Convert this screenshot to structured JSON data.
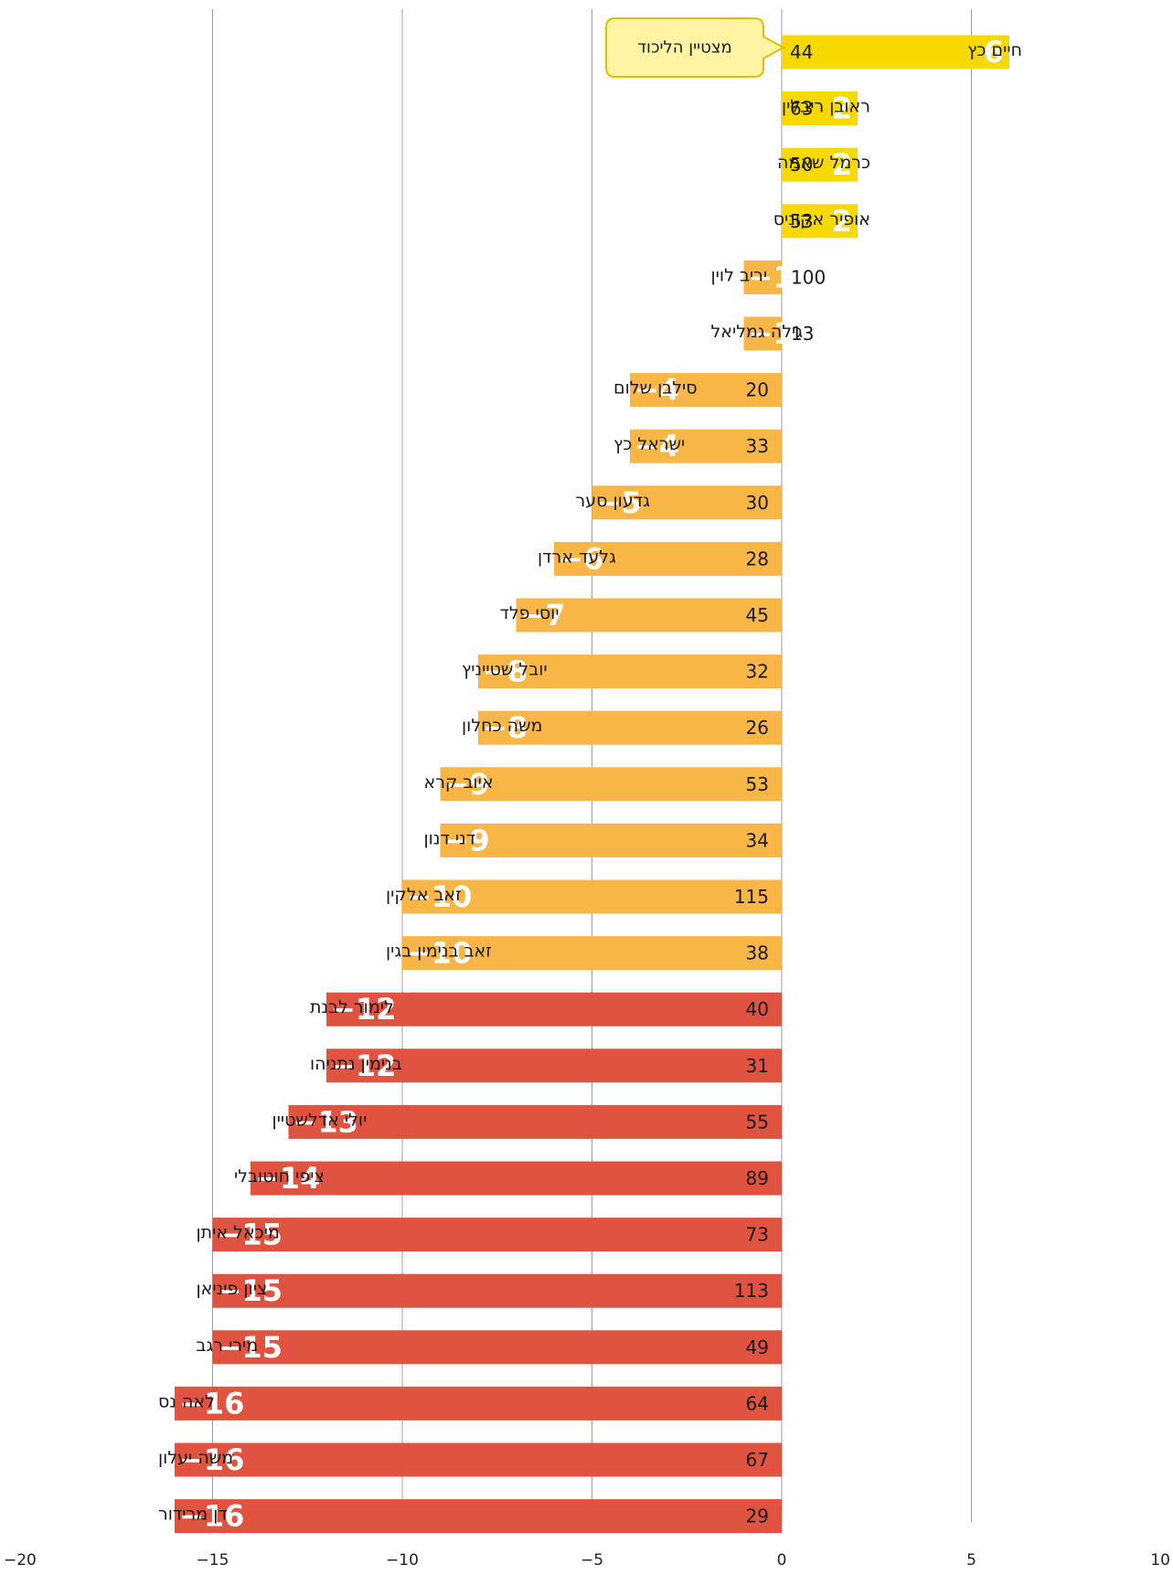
{
  "chart_data": {
    "type": "bar",
    "orientation": "horizontal",
    "xlim": [
      -20,
      10
    ],
    "x_ticks": [
      {
        "value": -20,
        "label": "−20"
      },
      {
        "value": -15,
        "label": "−15"
      },
      {
        "value": -10,
        "label": "−10"
      },
      {
        "value": -5,
        "label": "−5"
      },
      {
        "value": 0,
        "label": "0"
      },
      {
        "value": 5,
        "label": "5"
      },
      {
        "value": 10,
        "label": "10"
      }
    ],
    "grid": "vertical",
    "colors": {
      "positive": "#f7d900",
      "moderate": "#f8b646",
      "severe": "#df5340",
      "grid": "#9e9e9e",
      "callout_fill": "#fff4a3",
      "callout_border": "#e2c000"
    },
    "annotation": {
      "text": "מצטיין הליכוד",
      "target": "חיים כץ"
    },
    "rows": [
      {
        "name": "חיים כץ",
        "change": 6,
        "change_label": "6",
        "value": 44,
        "group": "positive"
      },
      {
        "name": "ראובן ריבלין",
        "change": 2,
        "change_label": "2",
        "value": 63,
        "group": "positive"
      },
      {
        "name": "כרמל שאמה",
        "change": 2,
        "change_label": "2",
        "value": 50,
        "group": "positive"
      },
      {
        "name": "אופיר אקוניס",
        "change": 2,
        "change_label": "2",
        "value": 53,
        "group": "positive"
      },
      {
        "name": "יריב לוין",
        "change": -1,
        "change_label": "−1",
        "value": 100,
        "group": "moderate"
      },
      {
        "name": "גילה גמליאל",
        "change": -1,
        "change_label": "−1",
        "value": 13,
        "group": "moderate"
      },
      {
        "name": "סילבן שלום",
        "change": -4,
        "change_label": "−4",
        "value": 20,
        "group": "moderate"
      },
      {
        "name": "ישראל כץ",
        "change": -4,
        "change_label": "−4",
        "value": 33,
        "group": "moderate"
      },
      {
        "name": "גדעון סער",
        "change": -5,
        "change_label": "−5",
        "value": 30,
        "group": "moderate"
      },
      {
        "name": "גלעד ארדן",
        "change": -6,
        "change_label": "−6",
        "value": 28,
        "group": "moderate"
      },
      {
        "name": "יוסי פלד",
        "change": -7,
        "change_label": "−7",
        "value": 45,
        "group": "moderate"
      },
      {
        "name": "יובל שטייניץ",
        "change": -8,
        "change_label": "−8",
        "value": 32,
        "group": "moderate"
      },
      {
        "name": "משה כחלון",
        "change": -8,
        "change_label": "−8",
        "value": 26,
        "group": "moderate"
      },
      {
        "name": "איוב קרא",
        "change": -9,
        "change_label": "−9",
        "value": 53,
        "group": "moderate"
      },
      {
        "name": "דני דנון",
        "change": -9,
        "change_label": "−9",
        "value": 34,
        "group": "moderate"
      },
      {
        "name": "זאב אלקין",
        "change": -10,
        "change_label": "−10",
        "value": 115,
        "group": "moderate"
      },
      {
        "name": "זאב בנימין בגין",
        "change": -10,
        "change_label": "−10",
        "value": 38,
        "group": "moderate"
      },
      {
        "name": "לימור לבנת",
        "change": -12,
        "change_label": "−12",
        "value": 40,
        "group": "severe"
      },
      {
        "name": "בנימין נתניהו",
        "change": -12,
        "change_label": "−12",
        "value": 31,
        "group": "severe"
      },
      {
        "name": "יולי אדלשטיין",
        "change": -13,
        "change_label": "−13",
        "value": 55,
        "group": "severe"
      },
      {
        "name": "ציפי חוטובלי",
        "change": -14,
        "change_label": "−14",
        "value": 89,
        "group": "severe"
      },
      {
        "name": "מיכאל איתן",
        "change": -15,
        "change_label": "−15",
        "value": 73,
        "group": "severe"
      },
      {
        "name": "ציון פיניאן",
        "change": -15,
        "change_label": "−15",
        "value": 113,
        "group": "severe"
      },
      {
        "name": "מירי רגב",
        "change": -15,
        "change_label": "−15",
        "value": 49,
        "group": "severe"
      },
      {
        "name": "לאה נס",
        "change": -16,
        "change_label": "−16",
        "value": 64,
        "group": "severe"
      },
      {
        "name": "משה יעלון",
        "change": -16,
        "change_label": "−16",
        "value": 67,
        "group": "severe"
      },
      {
        "name": "דן מרידור",
        "change": -16,
        "change_label": "−16",
        "value": 29,
        "group": "severe"
      }
    ]
  }
}
